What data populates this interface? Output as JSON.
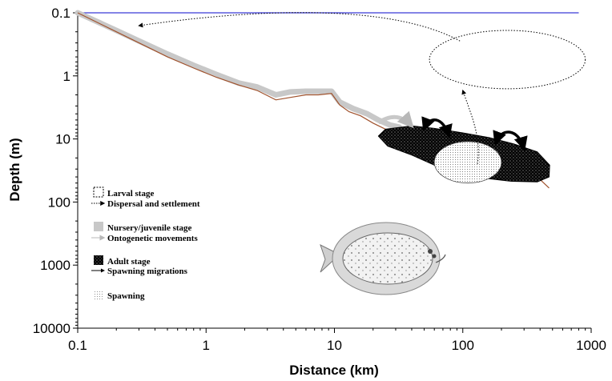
{
  "chart_data": {
    "type": "scatter",
    "title": "",
    "xlabel": "Distance (km)",
    "ylabel": "Depth (m)",
    "xscale": "log",
    "yscale": "log",
    "y_inverted": true,
    "xlim": [
      0.1,
      1000
    ],
    "ylim": [
      0.1,
      10000
    ],
    "x_ticks": [
      0.1,
      1,
      10,
      100,
      1000
    ],
    "y_ticks": [
      0.1,
      1,
      10,
      100,
      1000,
      10000
    ],
    "x_tick_labels": [
      "0.1",
      "1",
      "10",
      "100",
      "1000"
    ],
    "y_tick_labels": [
      "0.1",
      "1",
      "10",
      "100",
      "1000",
      "10000"
    ],
    "grid": false,
    "colors": {
      "surface": "#3b3bd6",
      "seabed": "#a0522d",
      "nursery": "#c8c8c8",
      "adult": "#000000",
      "larval": "#000000"
    },
    "surface_line": {
      "x": [
        0.1,
        800
      ],
      "y": [
        0.1,
        0.1
      ]
    },
    "seabed_profile": {
      "x": [
        0.1,
        0.2,
        0.3,
        0.5,
        0.8,
        1.2,
        1.8,
        2.5,
        3.5,
        4.5,
        6,
        7.5,
        9.5,
        11,
        13,
        16,
        20,
        25,
        30,
        40,
        50,
        70,
        100,
        140,
        200,
        280,
        380,
        470
      ],
      "y": [
        0.1,
        0.2,
        0.3,
        0.5,
        0.75,
        1.05,
        1.4,
        1.7,
        2.4,
        2.2,
        2.0,
        2.0,
        1.9,
        2.9,
        3.7,
        4.3,
        5.6,
        7.0,
        9.0,
        11.0,
        13.0,
        17.0,
        17.0,
        20.0,
        24.0,
        30.0,
        40.0,
        60.0
      ]
    },
    "nursery_band": {
      "x": [
        0.1,
        0.2,
        0.3,
        0.5,
        0.8,
        1.2,
        1.8,
        2.5,
        3.5,
        4.5,
        6,
        7.5,
        9.5,
        11,
        14,
        18,
        22,
        27,
        32
      ],
      "y": [
        0.1,
        0.19,
        0.28,
        0.45,
        0.68,
        0.95,
        1.3,
        1.5,
        2.0,
        1.8,
        1.75,
        1.75,
        1.75,
        2.6,
        3.3,
        4.0,
        5.0,
        6.0,
        6.5
      ]
    },
    "adult_area": {
      "x_range": [
        22,
        480
      ],
      "y_range": [
        6,
        50
      ]
    },
    "spawning_area": {
      "x_range": [
        60,
        200
      ],
      "y_range": [
        11,
        50
      ]
    },
    "larval_area": {
      "x_range": [
        55,
        900
      ],
      "y_range": [
        0.19,
        1.6
      ]
    },
    "legend": [
      {
        "label": "Larval stage",
        "symbol": "dashed-box"
      },
      {
        "label": "Dispersal and settlement",
        "symbol": "dotted-arrow"
      },
      {
        "label": "Nursery/juvenile stage",
        "symbol": "grey-box"
      },
      {
        "label": "Ontogenetic movements",
        "symbol": "grey-arrow"
      },
      {
        "label": "Adult stage",
        "symbol": "black-box"
      },
      {
        "label": "Spawning migrations",
        "symbol": "black-arrow"
      },
      {
        "label": "Spawning",
        "symbol": "stipple"
      }
    ],
    "legend_position": "bottom-left"
  }
}
